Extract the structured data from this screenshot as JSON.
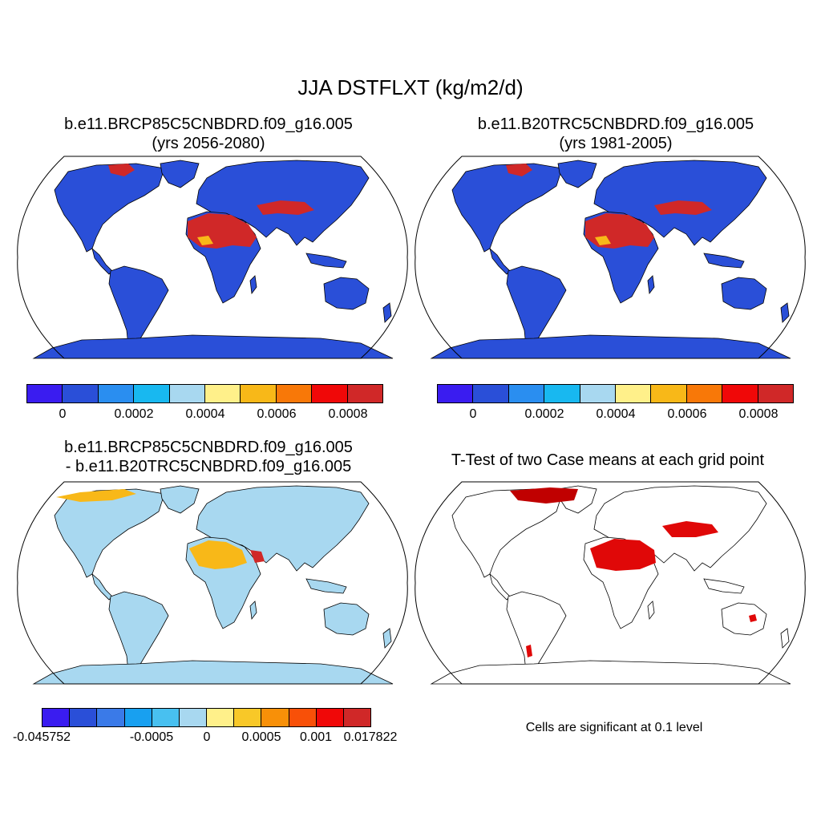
{
  "figure": {
    "title": "JJA DSTFLXT (kg/m2/d)"
  },
  "panels": {
    "case1": {
      "title_line1": "b.e11.BRCP85C5CNBDRD.f09_g16.005",
      "title_line2": "(yrs 2056-2080)"
    },
    "case2": {
      "title_line1": "b.e11.B20TRC5CNBDRD.f09_g16.005",
      "title_line2": "(yrs 1981-2005)"
    },
    "diff": {
      "title_line1": "b.e11.BRCP85C5CNBDRD.f09_g16.005",
      "title_line2": "- b.e11.B20TRC5CNBDRD.f09_g16.005"
    },
    "ttest": {
      "title": "T-Test of two Case means at each grid point",
      "note": "Cells are significant at 0.1 level"
    }
  },
  "colorbars": {
    "abs": {
      "colors": [
        "#3a1cf0",
        "#2a4fd8",
        "#2a8ef0",
        "#18b8f0",
        "#a8d8f0",
        "#fff08a",
        "#f8b818",
        "#f87808",
        "#f00808",
        "#d02828"
      ],
      "labels": [
        "0",
        "0.0002",
        "0.0004",
        "0.0006",
        "0.0008"
      ]
    },
    "diff": {
      "colors": [
        "#3a1cf0",
        "#2a4fd8",
        "#3a7ae8",
        "#18a0f0",
        "#48c0f0",
        "#a8d8f0",
        "#fff08a",
        "#f8c828",
        "#f89008",
        "#f85008",
        "#f00808",
        "#d02828"
      ],
      "labels": [
        "-0.045752",
        "-0.0005",
        "0",
        "0.0005",
        "0.001",
        "0.017822"
      ]
    }
  },
  "map_colors": {
    "land_abs": "#2a4fd8",
    "land_diff": "#a8d8f0",
    "dust_high": "#d02828",
    "dust_mid": "#f8b818",
    "significant": "#e00808",
    "significant_dark": "#c00000"
  }
}
